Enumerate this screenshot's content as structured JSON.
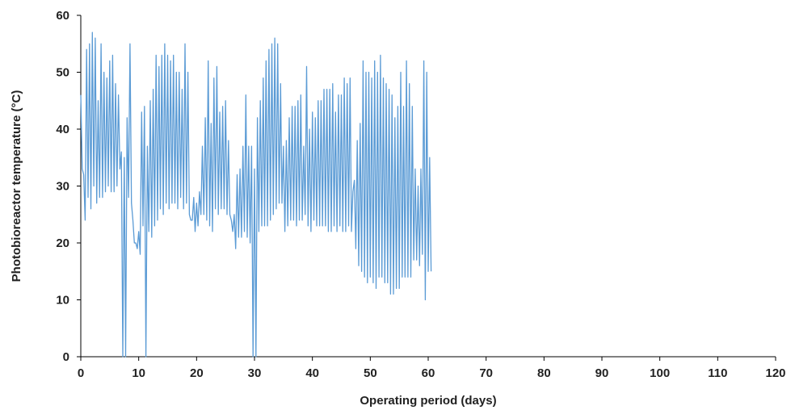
{
  "chart_data": {
    "type": "line",
    "title": "",
    "xlabel": "Operating period (days)",
    "ylabel": "Photobioreactor temperature (°C)",
    "xlim": [
      0,
      120
    ],
    "ylim": [
      0,
      60
    ],
    "x_ticks": [
      "0",
      "10",
      "20",
      "30",
      "40",
      "50",
      "60",
      "70",
      "80",
      "90",
      "100",
      "110",
      "120"
    ],
    "y_ticks": [
      "0",
      "10",
      "20",
      "30",
      "40",
      "50",
      "60"
    ],
    "grid": false,
    "legend": "none",
    "line_color": "#5b9bd5",
    "series": [
      {
        "x_start": 0,
        "x_step": 0.25,
        "y": [
          46,
          33,
          32,
          24,
          54,
          28,
          55,
          26,
          57,
          30,
          56,
          27,
          45,
          28,
          55,
          28,
          50,
          29,
          49,
          30,
          52,
          29,
          53,
          29,
          48,
          30,
          46,
          33,
          36,
          0,
          35,
          0,
          42,
          28,
          55,
          27,
          24,
          20,
          20,
          19,
          22,
          18,
          43,
          23,
          44,
          0,
          37,
          22,
          45,
          21,
          47,
          23,
          53,
          24,
          51,
          26,
          53,
          25,
          55,
          27,
          53,
          26,
          52,
          27,
          53,
          27,
          50,
          26,
          50,
          28,
          47,
          26,
          55,
          27,
          50,
          25,
          24,
          24,
          28,
          22,
          27,
          23,
          29,
          25,
          37,
          25,
          42,
          24,
          52,
          23,
          41,
          22,
          49,
          26,
          51,
          25,
          43,
          26,
          44,
          26,
          45,
          25,
          38,
          25,
          24,
          22,
          25,
          19,
          32,
          21,
          33,
          21,
          37,
          22,
          46,
          21,
          37,
          20,
          37,
          0,
          33,
          0,
          42,
          22,
          45,
          23,
          49,
          23,
          52,
          23,
          54,
          24,
          55,
          25,
          56,
          26,
          55,
          27,
          48,
          27,
          37,
          22,
          38,
          23,
          42,
          24,
          44,
          24,
          44,
          23,
          45,
          24,
          46,
          24,
          37,
          25,
          51,
          23,
          40,
          22,
          43,
          24,
          42,
          23,
          45,
          23,
          45,
          23,
          47,
          23,
          47,
          22,
          47,
          22,
          48,
          23,
          43,
          22,
          46,
          23,
          46,
          22,
          49,
          22,
          48,
          23,
          49,
          22,
          29,
          31,
          19,
          38,
          16,
          41,
          15,
          52,
          14,
          50,
          13,
          50,
          14,
          49,
          13,
          52,
          12,
          50,
          14,
          53,
          14,
          49,
          13,
          48,
          13,
          47,
          11,
          46,
          11,
          42,
          12,
          44,
          12,
          50,
          14,
          44,
          14,
          52,
          14,
          48,
          14,
          44,
          17,
          33,
          17,
          30,
          16,
          33,
          18,
          52,
          10,
          50,
          15,
          35,
          15
        ]
      }
    ]
  }
}
